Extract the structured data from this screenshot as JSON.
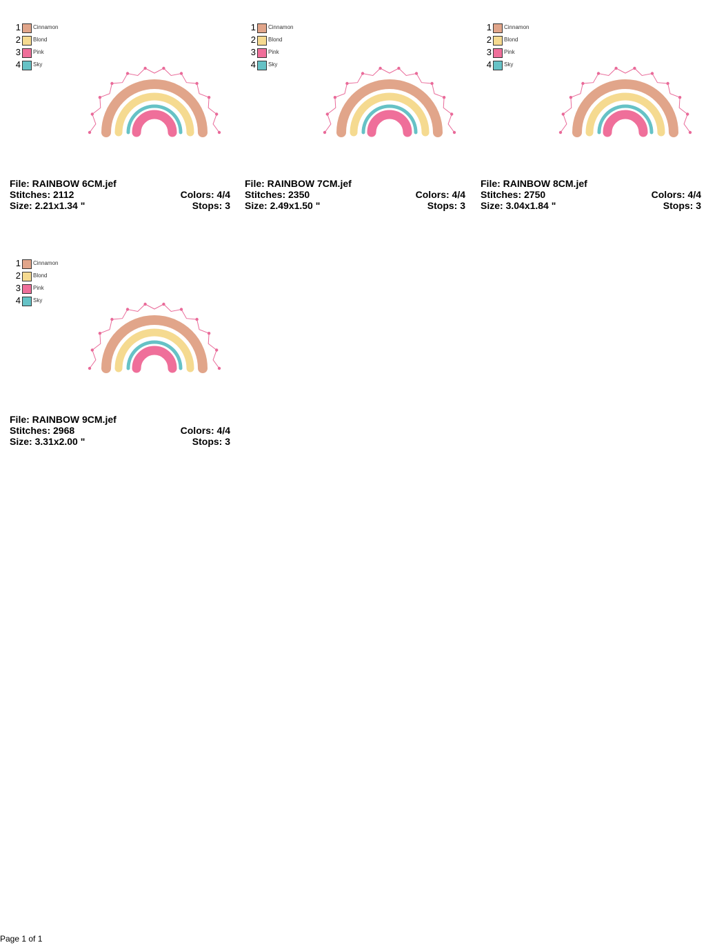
{
  "colors": {
    "cinnamon": "#e1a58a",
    "blond": "#f5da90",
    "pink": "#ef6f9a",
    "sky": "#66c2c6",
    "zigzag": "#e96a99"
  },
  "cards": [
    {
      "file": "File: RAINBOW 6CM.jef",
      "stitches": "Stitches: 2112",
      "colors_count": "Colors: 4/4",
      "size": "Size: 2.21x1.34 \"",
      "stops": "Stops: 3",
      "legend": [
        {
          "num": "1",
          "name": "Cinnamon",
          "color": "#e1a58a"
        },
        {
          "num": "2",
          "name": "Blond",
          "color": "#f5da90"
        },
        {
          "num": "3",
          "name": "Pink",
          "color": "#ef6f9a"
        },
        {
          "num": "4",
          "name": "Sky",
          "color": "#66c2c6"
        }
      ]
    },
    {
      "file": "File: RAINBOW 7CM.jef",
      "stitches": "Stitches: 2350",
      "colors_count": "Colors: 4/4",
      "size": "Size: 2.49x1.50 \"",
      "stops": "Stops: 3",
      "legend": [
        {
          "num": "1",
          "name": "Cinnamon",
          "color": "#e1a58a"
        },
        {
          "num": "2",
          "name": "Blond",
          "color": "#f5da90"
        },
        {
          "num": "3",
          "name": "Pink",
          "color": "#ef6f9a"
        },
        {
          "num": "4",
          "name": "Sky",
          "color": "#66c2c6"
        }
      ]
    },
    {
      "file": "File: RAINBOW 8CM.jef",
      "stitches": "Stitches: 2750",
      "colors_count": "Colors: 4/4",
      "size": "Size: 3.04x1.84 \"",
      "stops": "Stops: 3",
      "legend": [
        {
          "num": "1",
          "name": "Cinnamon",
          "color": "#e1a58a"
        },
        {
          "num": "2",
          "name": "Blond",
          "color": "#f5da90"
        },
        {
          "num": "3",
          "name": "Pink",
          "color": "#ef6f9a"
        },
        {
          "num": "4",
          "name": "Sky",
          "color": "#66c2c6"
        }
      ]
    },
    {
      "file": "File: RAINBOW 9CM.jef",
      "stitches": "Stitches: 2968",
      "colors_count": "Colors: 4/4",
      "size": "Size: 3.31x2.00 \"",
      "stops": "Stops: 3",
      "legend": [
        {
          "num": "1",
          "name": "Cinnamon",
          "color": "#e1a58a"
        },
        {
          "num": "2",
          "name": "Blond",
          "color": "#f5da90"
        },
        {
          "num": "3",
          "name": "Pink",
          "color": "#ef6f9a"
        },
        {
          "num": "4",
          "name": "Sky",
          "color": "#66c2c6"
        }
      ]
    }
  ],
  "footer": {
    "page_label": "Page 1 of 1"
  }
}
